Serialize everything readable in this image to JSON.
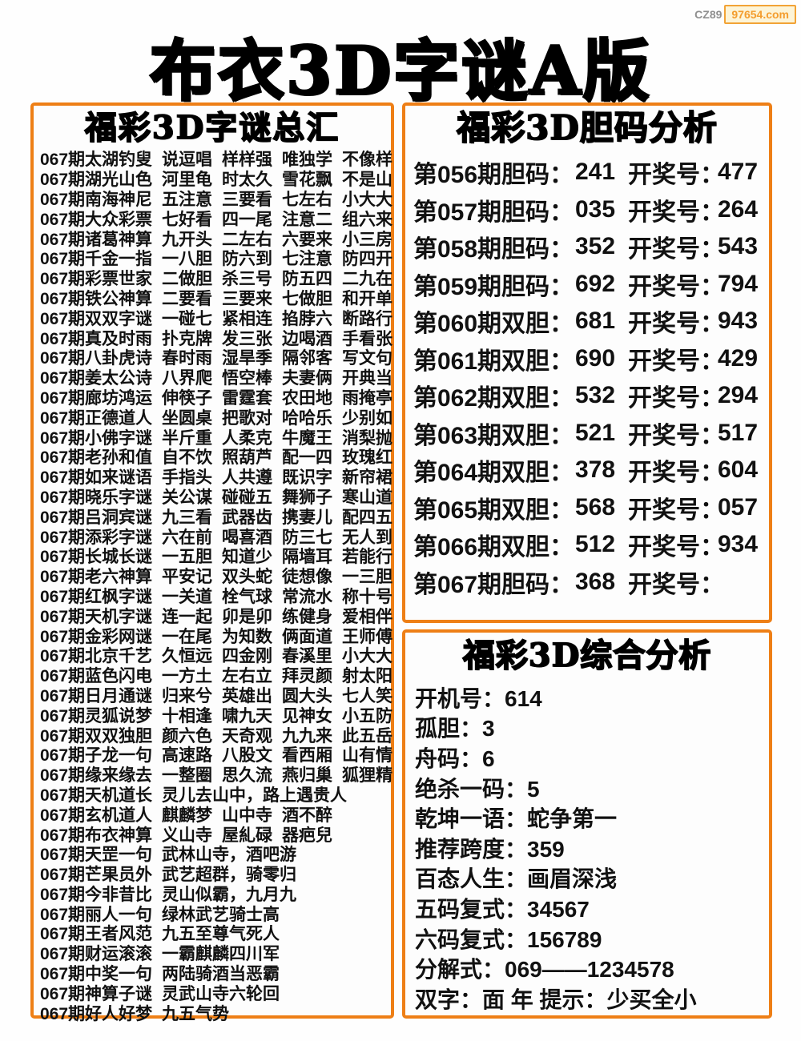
{
  "watermark": {
    "prefix": "CZ89",
    "site": "97654.com"
  },
  "title": "布衣3D字谜A版",
  "colors": {
    "accent": "#ee7f16",
    "watermark_orange": "#f49d2e"
  },
  "left_panel": {
    "header": "福彩3D字谜总汇",
    "rows": [
      {
        "name": "067期太湖钓叟",
        "phrases": [
          "说逗唱",
          "样样强",
          "唯独学",
          "不像样"
        ]
      },
      {
        "name": "067期湖光山色",
        "phrases": [
          "河里龟",
          "时太久",
          "雪花飘",
          "不是山"
        ]
      },
      {
        "name": "067期南海神尼",
        "phrases": [
          "五注意",
          "三要看",
          "七左右",
          "小大大"
        ]
      },
      {
        "name": "067期大众彩票",
        "phrases": [
          "七好看",
          "四一尾",
          "注意二",
          "组六来"
        ]
      },
      {
        "name": "067期诸葛神算",
        "phrases": [
          "九开头",
          "二左右",
          "六要来",
          "小三房"
        ]
      },
      {
        "name": "067期千金一指",
        "phrases": [
          "一八胆",
          "防六到",
          "七注意",
          "防四开"
        ]
      },
      {
        "name": "067期彩票世家",
        "phrases": [
          "二做胆",
          "杀三号",
          "防五四",
          "二九在"
        ]
      },
      {
        "name": "067期铁公神算",
        "phrases": [
          "二要看",
          "三要来",
          "七做胆",
          "和开单"
        ]
      },
      {
        "name": "067期双双字谜",
        "phrases": [
          "一碰七",
          "紧相连",
          "掐脖六",
          "断路行"
        ]
      },
      {
        "name": "067期真及时雨",
        "phrases": [
          "扑克牌",
          "发三张",
          "边喝酒",
          "手看张"
        ]
      },
      {
        "name": "067期八卦虎诗",
        "phrases": [
          "春时雨",
          "湿旱季",
          "隔邻客",
          "写文句"
        ]
      },
      {
        "name": "067期姜太公诗",
        "phrases": [
          "八界爬",
          "悟空棒",
          "夫妻俩",
          "开典当"
        ]
      },
      {
        "name": "067期廊坊鸿运",
        "phrases": [
          "伸筷子",
          "雷霆套",
          "农田地",
          "雨掩亭"
        ]
      },
      {
        "name": "067期正德道人",
        "phrases": [
          "坐圆桌",
          "把歌对",
          "哈哈乐",
          "少别如"
        ]
      },
      {
        "name": "067期小佛字谜",
        "phrases": [
          "半斤重",
          "人柔克",
          "牛魔王",
          "消梨抛"
        ]
      },
      {
        "name": "067期老孙和值",
        "phrases": [
          "自不饮",
          "照葫芦",
          "配一四",
          "玫瑰红"
        ]
      },
      {
        "name": "067期如来谜语",
        "phrases": [
          "手指头",
          "人共遵",
          "既识字",
          "新帘裙"
        ]
      },
      {
        "name": "067期晓乐字谜",
        "phrases": [
          "关公谋",
          "碰碰五",
          "舞狮子",
          "寒山道"
        ]
      },
      {
        "name": "067期吕洞宾谜",
        "phrases": [
          "九三看",
          "武器齿",
          "携妻儿",
          "配四五"
        ]
      },
      {
        "name": "067期添彩字谜",
        "phrases": [
          "六在前",
          "喝喜酒",
          "防三七",
          "无人到"
        ]
      },
      {
        "name": "067期长城长谜",
        "phrases": [
          "一五胆",
          "知道少",
          "隔墙耳",
          "若能行"
        ]
      },
      {
        "name": "067期老六神算",
        "phrases": [
          "平安记",
          "双头蛇",
          "徒想像",
          "一三胆"
        ]
      },
      {
        "name": "067期红枫字谜",
        "phrases": [
          "一关道",
          "栓气球",
          "常流水",
          "称十号"
        ]
      },
      {
        "name": "067期天机字谜",
        "phrases": [
          "连一起",
          "卯是卯",
          "练健身",
          "爱相伴"
        ]
      },
      {
        "name": "067期金彩网谜",
        "phrases": [
          "一在尾",
          "为知数",
          "俩面道",
          "王师傅"
        ]
      },
      {
        "name": "067期北京千艺",
        "phrases": [
          "久恒远",
          "四金刚",
          "春溪里",
          "小大大"
        ]
      },
      {
        "name": "067期蓝色闪电",
        "phrases": [
          "一方土",
          "左右立",
          "拜灵颜",
          "射太阳"
        ]
      },
      {
        "name": "067期日月通谜",
        "phrases": [
          "归来兮",
          "英雄出",
          "圆大头",
          "七人笑"
        ]
      },
      {
        "name": "067期灵狐说梦",
        "phrases": [
          "十相逢",
          "啸九天",
          "见神女",
          "小五防"
        ]
      },
      {
        "name": "067期双双独胆",
        "phrases": [
          "颜六色",
          "天奇观",
          "九九来",
          "此五岳"
        ]
      },
      {
        "name": "067期子龙一句",
        "phrases": [
          "高速路",
          "八股文",
          "看西厢",
          "山有情"
        ]
      },
      {
        "name": "067期缘来缘去",
        "phrases": [
          "一整圈",
          "思久流",
          "燕归巢",
          "狐狸精"
        ]
      },
      {
        "name": "067期天机道长",
        "phrases": [
          "灵儿去山中，路上遇贵人"
        ]
      },
      {
        "name": "067期玄机道人",
        "phrases": [
          "麒麟梦",
          "山中寺",
          "酒不醉"
        ]
      },
      {
        "name": "067期布衣神算",
        "phrases": [
          "义山寺",
          "屋糺碌",
          "器疤兒"
        ]
      },
      {
        "name": "067期天罡一句",
        "phrases": [
          "武林山寺，酒吧游"
        ]
      },
      {
        "name": "067期芒果员外",
        "phrases": [
          "武艺超群，骑零归"
        ]
      },
      {
        "name": "067期今非昔比",
        "phrases": [
          "灵山似霸，九月九"
        ]
      },
      {
        "name": "067期丽人一句",
        "phrases": [
          "绿林武艺骑士高"
        ]
      },
      {
        "name": "067期王者风范",
        "phrases": [
          "九五至尊气死人"
        ]
      },
      {
        "name": "067期财运滚滚",
        "phrases": [
          "一霸麒麟四川军"
        ]
      },
      {
        "name": "067期中奖一句",
        "phrases": [
          "两陆骑酒当恶霸"
        ]
      },
      {
        "name": "067期神算子谜",
        "phrases": [
          "灵武山寺六轮回"
        ]
      },
      {
        "name": "067期好人好梦",
        "phrases": [
          "九五气势"
        ]
      }
    ]
  },
  "danma_panel": {
    "header": "福彩3D胆码分析",
    "rows": [
      {
        "label": "第056期胆码：",
        "dan": "241",
        "kai": "开奖号：",
        "result": "477"
      },
      {
        "label": "第057期胆码：",
        "dan": "035",
        "kai": "开奖号：",
        "result": "264"
      },
      {
        "label": "第058期胆码：",
        "dan": "352",
        "kai": "开奖号：",
        "result": "543"
      },
      {
        "label": "第059期胆码：",
        "dan": "692",
        "kai": "开奖号：",
        "result": "794"
      },
      {
        "label": "第060期双胆：",
        "dan": "681",
        "kai": "开奖号：",
        "result": "943"
      },
      {
        "label": "第061期双胆：",
        "dan": "690",
        "kai": "开奖号：",
        "result": "429"
      },
      {
        "label": "第062期双胆：",
        "dan": "532",
        "kai": "开奖号：",
        "result": "294"
      },
      {
        "label": "第063期双胆：",
        "dan": "521",
        "kai": "开奖号：",
        "result": "517"
      },
      {
        "label": "第064期双胆：",
        "dan": "378",
        "kai": "开奖号：",
        "result": "604"
      },
      {
        "label": "第065期双胆：",
        "dan": "568",
        "kai": "开奖号：",
        "result": "057"
      },
      {
        "label": "第066期双胆：",
        "dan": "512",
        "kai": "开奖号：",
        "result": "934"
      },
      {
        "label": "第067期胆码：",
        "dan": "368",
        "kai": "开奖号：",
        "result": ""
      }
    ]
  },
  "analysis_panel": {
    "header": "福彩3D综合分析",
    "rows": [
      "开机号：614",
      "孤胆：3",
      "舟码：6",
      "绝杀一码：5",
      "乾坤一语：蛇争第一",
      "推荐跨度：359",
      "百态人生：画眉深浅",
      "五码复式：34567",
      "六码复式：156789",
      "分解式：069——1234578",
      "双字：面 年 提示：少买全小"
    ]
  }
}
